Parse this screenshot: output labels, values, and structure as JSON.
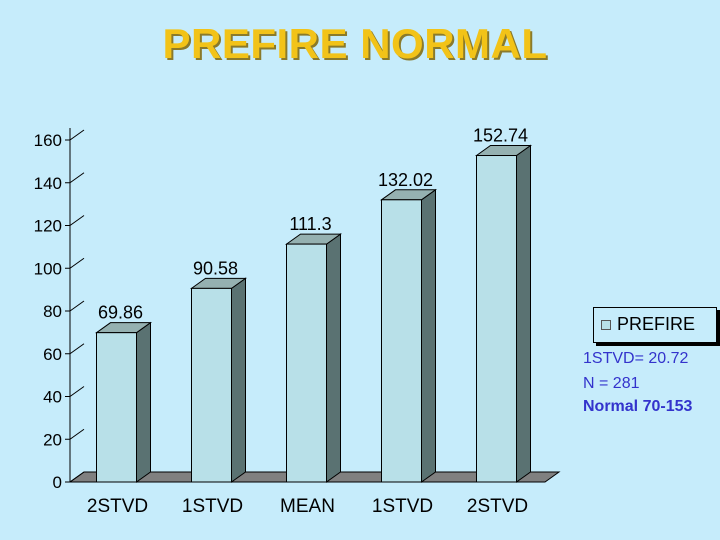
{
  "title": "PREFIRE NORMAL",
  "legend": {
    "label": "PREFIRE",
    "swatch_color": "#b8e0e8"
  },
  "stats": {
    "stdv": "1STVD= 20.72",
    "n": "N = 281",
    "normal": "Normal 70-153"
  },
  "chart_data": {
    "type": "bar",
    "title": "PREFIRE NORMAL",
    "categories": [
      "2STVD",
      "1STVD",
      "MEAN",
      "1STVD",
      "2STVD"
    ],
    "series": [
      {
        "name": "PREFIRE",
        "values": [
          69.86,
          90.58,
          111.3,
          132.02,
          152.74
        ]
      }
    ],
    "data_labels": [
      "69.86",
      "90.58",
      "111.3",
      "132.02",
      "152.74"
    ],
    "y_ticks": [
      0,
      20,
      40,
      60,
      80,
      100,
      120,
      140,
      160
    ],
    "ylim": [
      0,
      160
    ],
    "xlabel": "",
    "ylabel": "",
    "grid": false,
    "legend_position": "right",
    "colors": {
      "bar_front": "#b8e0e8",
      "bar_side": "#5a7272",
      "bar_top": "#95b1b1",
      "floor": "#808080",
      "axis": "#000000"
    }
  }
}
